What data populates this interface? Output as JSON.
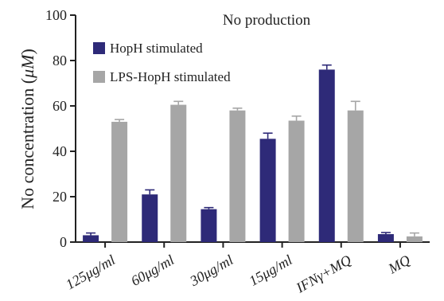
{
  "chart_data": {
    "type": "bar",
    "title": "No production",
    "ylabel": "No concentration (",
    "ylabel_unit": "μM",
    "ylabel_close": ")",
    "xlabel": "",
    "ylim": [
      0,
      100
    ],
    "yticks": [
      "0",
      "20",
      "40",
      "60",
      "80",
      "100"
    ],
    "ytick_values": [
      0,
      20,
      40,
      60,
      80,
      100
    ],
    "categories": [
      "125μg/ml",
      "60μg/ml",
      "30μg/ml",
      "15μg/ml",
      "IFNγ+MQ",
      "MQ"
    ],
    "grid": false,
    "legend_position": "top-left",
    "series": [
      {
        "name": "HopH stimulated",
        "color": "#2e2a78",
        "values": [
          3,
          21,
          14.5,
          45.5,
          76,
          3.5
        ],
        "errors": [
          1,
          2,
          0.7,
          2.5,
          2,
          0.7
        ]
      },
      {
        "name": "LPS-HopH stimulated",
        "color": "#a6a6a6",
        "values": [
          53,
          60.5,
          58,
          53.5,
          58,
          2.5
        ],
        "errors": [
          1,
          1.5,
          1,
          2,
          4,
          1.5
        ]
      }
    ]
  }
}
